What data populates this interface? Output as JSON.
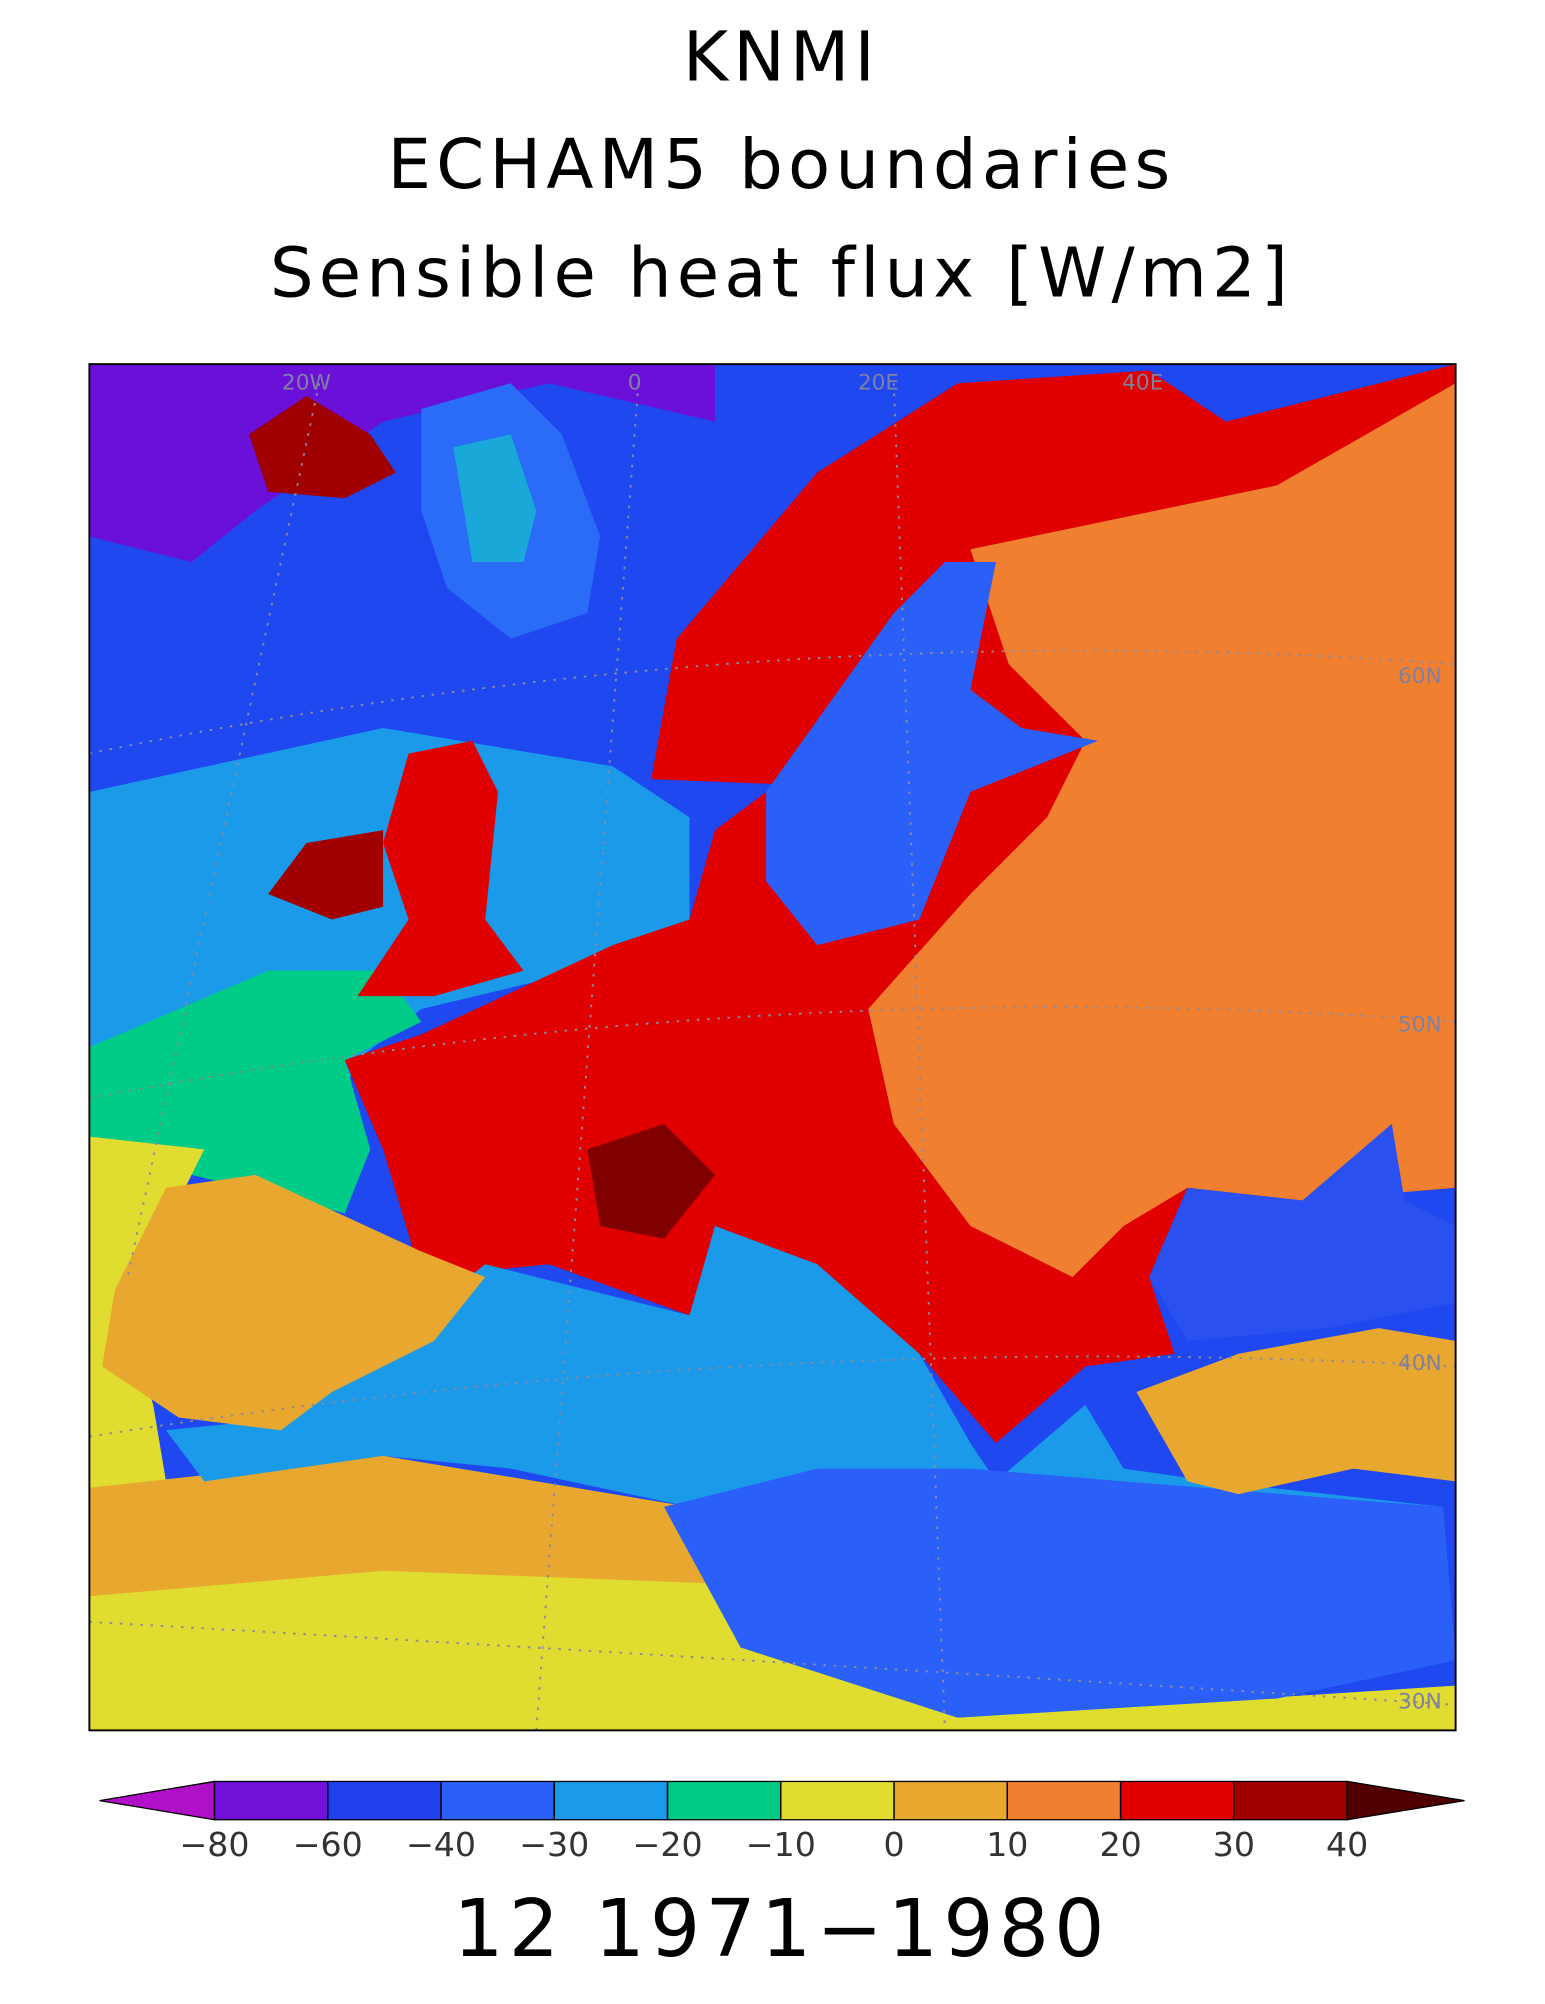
{
  "header": {
    "lines": [
      "KNMI",
      "ECHAM5 boundaries",
      "Sensible heat flux [W/m2]"
    ]
  },
  "map": {
    "grid_labels": [
      "20W",
      "0",
      "20E",
      "40E",
      "60N",
      "50N",
      "40N",
      "30N"
    ]
  },
  "colorbar": {
    "ticks": [
      {
        "value": -80,
        "label": "−80"
      },
      {
        "value": -60,
        "label": "−60"
      },
      {
        "value": -40,
        "label": "−40"
      },
      {
        "value": -30,
        "label": "−30"
      },
      {
        "value": -20,
        "label": "−20"
      },
      {
        "value": -10,
        "label": "−10"
      },
      0,
      10,
      20,
      30,
      40
    ],
    "colors": [
      "#b010c8",
      "#7010d8",
      "#2040f0",
      "#2a60f8",
      "#1a9ae8",
      "#00cc88",
      "#e0dc30",
      "#e8a830",
      "#f08030",
      "#e00000",
      "#a00000",
      "#500000"
    ]
  },
  "footer": {
    "label": "12 1971−1980"
  }
}
